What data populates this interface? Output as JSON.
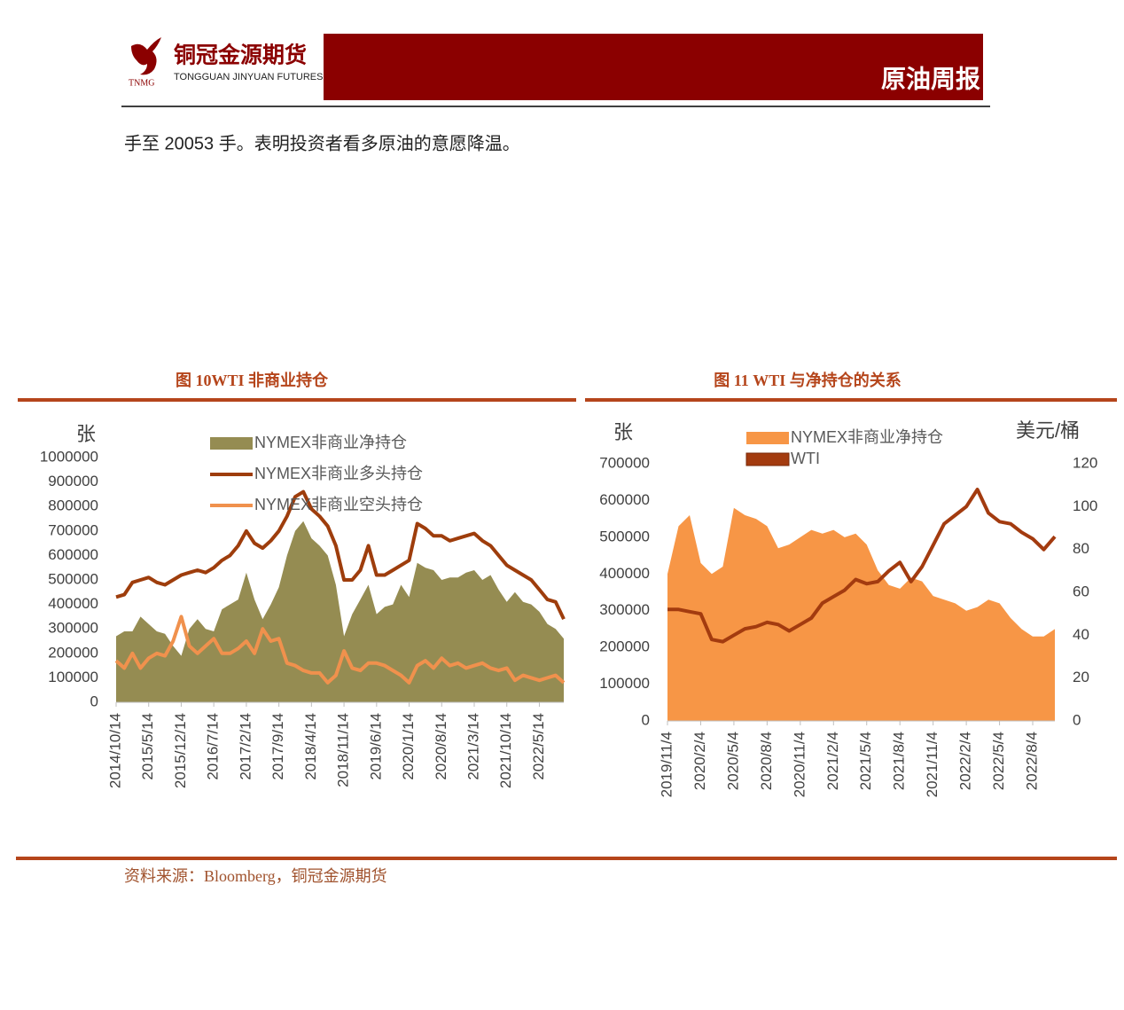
{
  "header": {
    "logo_cn": "铜冠金源期货",
    "logo_en": "TONGGUAN JINYUAN FUTURES",
    "logo_abbr": "TNMG",
    "report": "原油周报"
  },
  "body_text": "手至 20053 手。表明投资者看多原油的意愿降温。",
  "chart_data": [
    {
      "type": "combo",
      "title": "图 10WTI 非商业持仓",
      "y_label": "张",
      "categories": [
        "2014/10/14",
        null,
        null,
        null,
        "2015/5/14",
        null,
        null,
        null,
        "2015/12/14",
        null,
        null,
        null,
        "2016/7/14",
        null,
        null,
        null,
        "2017/2/14",
        null,
        null,
        null,
        "2017/9/14",
        null,
        null,
        null,
        "2018/4/14",
        null,
        null,
        null,
        "2018/11/14",
        null,
        null,
        null,
        "2019/6/14",
        null,
        null,
        null,
        "2020/1/14",
        null,
        null,
        null,
        "2020/8/14",
        null,
        null,
        null,
        "2021/3/14",
        null,
        null,
        null,
        "2021/10/14",
        null,
        null,
        null,
        "2022/5/14",
        null,
        null,
        null
      ],
      "ylim": [
        0,
        1000000
      ],
      "yticks": [
        0,
        100000,
        200000,
        300000,
        400000,
        500000,
        600000,
        700000,
        800000,
        900000,
        1000000
      ],
      "legend": "top-center",
      "legend_marker": "mixed",
      "series": [
        {
          "name": "NYMEX非商业净持仓",
          "type": "area",
          "color": "#958c52",
          "values": [
            270000,
            290000,
            290000,
            350000,
            320000,
            290000,
            280000,
            230000,
            190000,
            300000,
            340000,
            300000,
            290000,
            380000,
            400000,
            420000,
            530000,
            420000,
            340000,
            400000,
            470000,
            600000,
            700000,
            740000,
            670000,
            640000,
            600000,
            480000,
            270000,
            360000,
            420000,
            480000,
            360000,
            390000,
            400000,
            480000,
            430000,
            570000,
            550000,
            540000,
            500000,
            510000,
            510000,
            530000,
            540000,
            500000,
            520000,
            460000,
            410000,
            450000,
            410000,
            400000,
            370000,
            320000,
            300000,
            260000
          ]
        },
        {
          "name": "NYMEX非商业多头持仓",
          "type": "line",
          "color": "#9e3d0c",
          "values": [
            430000,
            440000,
            490000,
            500000,
            510000,
            490000,
            480000,
            500000,
            520000,
            530000,
            540000,
            530000,
            550000,
            580000,
            600000,
            640000,
            700000,
            650000,
            630000,
            660000,
            700000,
            760000,
            840000,
            860000,
            790000,
            760000,
            720000,
            640000,
            500000,
            500000,
            540000,
            640000,
            520000,
            520000,
            540000,
            560000,
            580000,
            730000,
            710000,
            680000,
            680000,
            660000,
            670000,
            680000,
            690000,
            660000,
            640000,
            600000,
            560000,
            540000,
            520000,
            500000,
            460000,
            420000,
            410000,
            340000
          ]
        },
        {
          "name": "NYMEX非商业空头持仓",
          "type": "line",
          "color": "#f0914d",
          "values": [
            170000,
            140000,
            200000,
            140000,
            180000,
            200000,
            190000,
            250000,
            350000,
            230000,
            200000,
            230000,
            260000,
            200000,
            200000,
            220000,
            250000,
            200000,
            300000,
            250000,
            260000,
            160000,
            150000,
            130000,
            120000,
            120000,
            80000,
            110000,
            210000,
            140000,
            130000,
            160000,
            160000,
            150000,
            130000,
            110000,
            80000,
            150000,
            170000,
            140000,
            180000,
            150000,
            160000,
            140000,
            150000,
            160000,
            140000,
            130000,
            140000,
            90000,
            110000,
            100000,
            90000,
            100000,
            110000,
            80000
          ]
        }
      ]
    },
    {
      "type": "combo",
      "title": "图 11 WTI 与净持仓的关系",
      "y_label": "张",
      "y2_label": "美元/桶",
      "categories": [
        "2019/11/4",
        null,
        null,
        "2020/2/4",
        null,
        null,
        "2020/5/4",
        null,
        null,
        "2020/8/4",
        null,
        null,
        "2020/11/4",
        null,
        null,
        "2021/2/4",
        null,
        null,
        "2021/5/4",
        null,
        null,
        "2021/8/4",
        null,
        null,
        "2021/11/4",
        null,
        null,
        "2022/2/4",
        null,
        null,
        "2022/5/4",
        null,
        null,
        "2022/8/4",
        null,
        null
      ],
      "ylim": [
        0,
        700000
      ],
      "yticks": [
        0,
        100000,
        200000,
        300000,
        400000,
        500000,
        600000,
        700000
      ],
      "y2lim": [
        0,
        120
      ],
      "y2ticks": [
        0,
        20,
        40,
        60,
        80,
        100,
        120
      ],
      "legend": "top-center",
      "legend_marker": "rect",
      "series": [
        {
          "name": "NYMEX非商业净持仓",
          "type": "area",
          "color": "#f79646",
          "values": [
            400000,
            530000,
            560000,
            430000,
            400000,
            420000,
            580000,
            560000,
            550000,
            530000,
            470000,
            480000,
            500000,
            520000,
            510000,
            520000,
            500000,
            510000,
            480000,
            410000,
            370000,
            360000,
            390000,
            380000,
            340000,
            330000,
            320000,
            300000,
            310000,
            330000,
            320000,
            280000,
            250000,
            230000,
            230000,
            250000
          ]
        },
        {
          "name": "WTI",
          "type": "line",
          "axis": "y2",
          "color": "#a33b0f",
          "values": [
            52,
            52,
            51,
            50,
            38,
            37,
            40,
            43,
            44,
            46,
            45,
            42,
            45,
            48,
            55,
            58,
            61,
            66,
            64,
            65,
            70,
            74,
            65,
            72,
            82,
            92,
            96,
            100,
            108,
            97,
            93,
            92,
            88,
            85,
            80,
            86
          ]
        }
      ]
    }
  ],
  "source": "资料来源：Bloomberg，铜冠金源期货"
}
